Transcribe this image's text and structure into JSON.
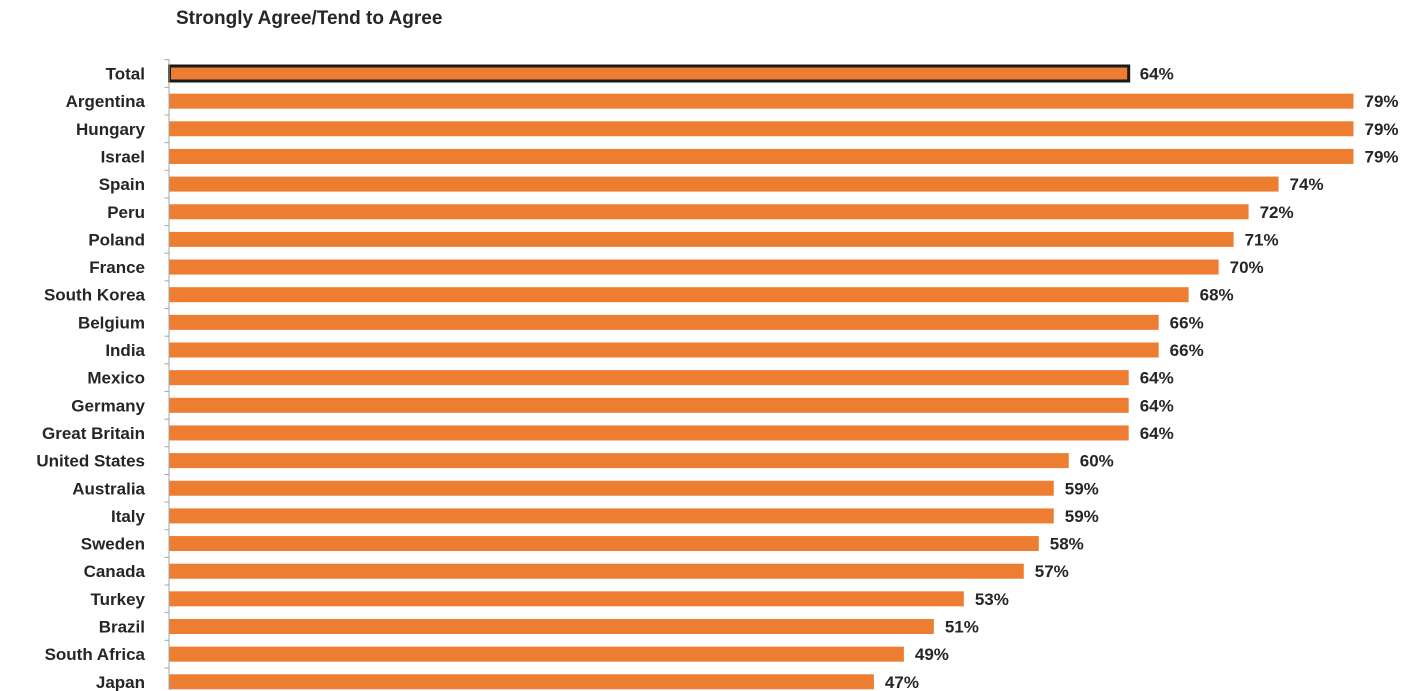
{
  "chart_data": {
    "type": "bar",
    "orientation": "horizontal",
    "title": "Strongly Agree/Tend to Agree",
    "xlabel": "",
    "ylabel": "",
    "xlim": [
      0,
      79
    ],
    "grid": false,
    "categories": [
      "Total",
      "Argentina",
      "Hungary",
      "Israel",
      "Spain",
      "Peru",
      "Poland",
      "France",
      "South Korea",
      "Belgium",
      "India",
      "Mexico",
      "Germany",
      "Great Britain",
      "United States",
      "Australia",
      "Italy",
      "Sweden",
      "Canada",
      "Turkey",
      "Brazil",
      "South Africa",
      "Japan"
    ],
    "values": [
      64,
      79,
      79,
      79,
      74,
      72,
      71,
      70,
      68,
      66,
      66,
      64,
      64,
      64,
      60,
      59,
      59,
      58,
      57,
      53,
      51,
      49,
      47
    ],
    "value_labels": [
      "64%",
      "79%",
      "79%",
      "79%",
      "74%",
      "72%",
      "71%",
      "70%",
      "68%",
      "66%",
      "66%",
      "64%",
      "64%",
      "64%",
      "60%",
      "59%",
      "59%",
      "58%",
      "57%",
      "53%",
      "51%",
      "49%",
      "47%"
    ],
    "highlighted_category": "Total",
    "colors": {
      "bar": "#ED7D31",
      "highlight_outline": "#1A1A1A",
      "axis": "#A6A6A6",
      "text": "#262626"
    }
  }
}
